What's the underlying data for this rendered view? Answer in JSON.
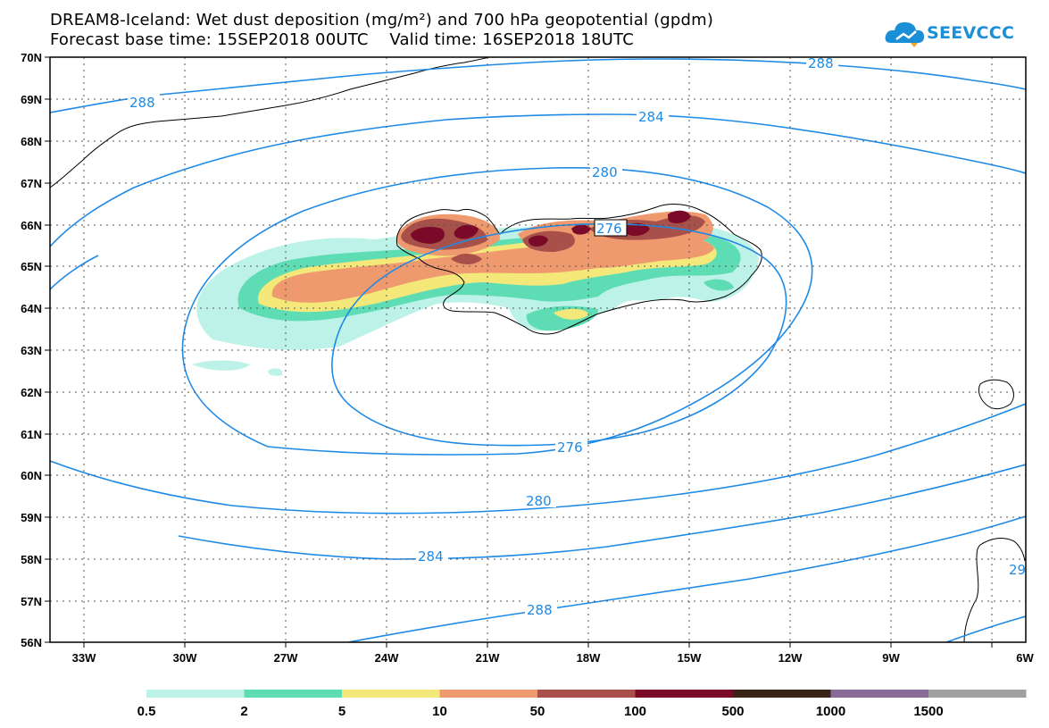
{
  "header": {
    "title_line1": "DREAM8-Iceland: Wet dust deposition (mg/m²) and 700 hPa geopotential (gpdm)",
    "title_line2": "Forecast base time: 15SEP2018 00UTC    Valid time: 16SEP2018 18UTC",
    "logo_text": "SEEVCCC"
  },
  "map": {
    "lat_labels": [
      "70N",
      "69N",
      "68N",
      "67N",
      "66N",
      "65N",
      "64N",
      "63N",
      "62N",
      "61N",
      "60N",
      "59N",
      "58N",
      "57N",
      "56N"
    ],
    "lon_labels": [
      "33W",
      "30W",
      "27W",
      "24W",
      "21W",
      "18W",
      "15W",
      "12W",
      "9W",
      "6W"
    ],
    "contour_labels": {
      "c288_top_left": "288",
      "c288_top_right": "288",
      "c284_top": "284",
      "c280_top": "280",
      "c276_top": "276",
      "c276_bottom": "276",
      "c280_bottom": "280",
      "c284_bottom": "284",
      "c288_bottom": "288",
      "c29_right": "29"
    },
    "contour_color": "#1e8ae6",
    "coastline_color": "#000000"
  },
  "legend": {
    "colors": [
      "#bdf2e8",
      "#5edcb4",
      "#f5e87a",
      "#ef9a6e",
      "#a8504a",
      "#7a0a28",
      "#3a2418",
      "#8a6a98",
      "#a0a0a0"
    ],
    "labels": [
      "0.5",
      "2",
      "5",
      "10",
      "50",
      "100",
      "500",
      "1000",
      "1500"
    ]
  }
}
